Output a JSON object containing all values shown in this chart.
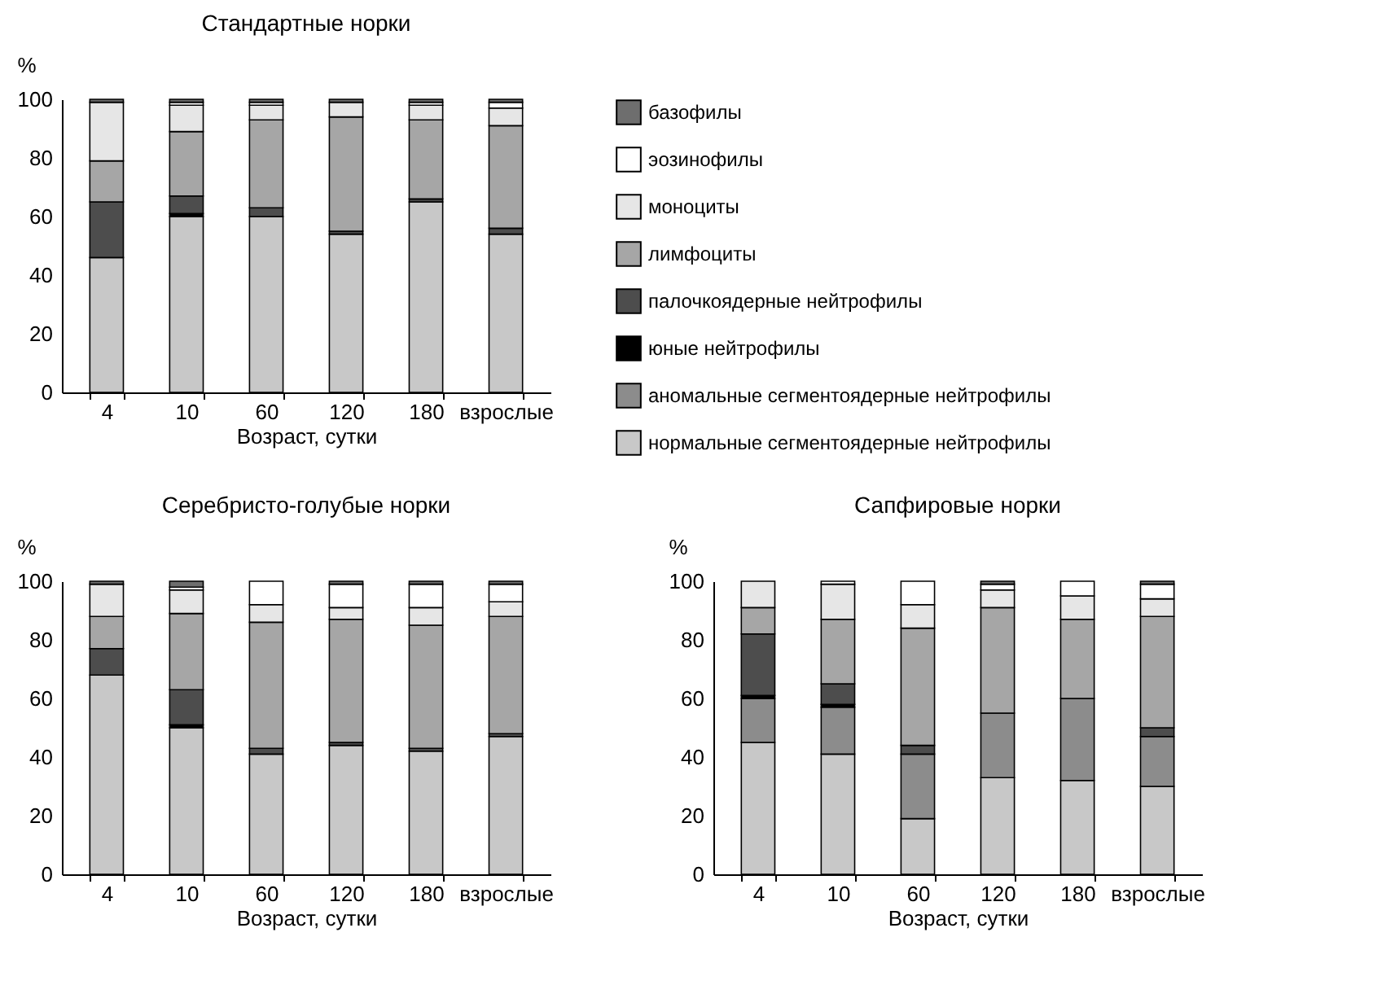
{
  "chart_data": [
    {
      "type": "bar",
      "title": "Стандартные норки",
      "xlabel": "Возраст, сутки",
      "ylabel": "%",
      "categories": [
        "4",
        "10",
        "60",
        "120",
        "180",
        "взрослые"
      ],
      "stacked": true,
      "ylim": [
        0,
        100
      ],
      "yticks": [
        0,
        20,
        40,
        60,
        80,
        100
      ],
      "grid": false,
      "legend": "right",
      "series": [
        {
          "name": "нормальные сегментоядерные нейтрофилы",
          "color": "#c8c8c8",
          "values": [
            46,
            60,
            60,
            54,
            65,
            54
          ]
        },
        {
          "name": "аномальные сегментоядерные нейтрофилы",
          "color": "#8c8c8c",
          "values": [
            null,
            null,
            null,
            null,
            null,
            null
          ]
        },
        {
          "name": "юные нейтрофилы",
          "color": "#000000",
          "values": [
            null,
            1,
            null,
            null,
            null,
            null
          ]
        },
        {
          "name": "палочкоядерные нейтрофилы",
          "color": "#4d4d4d",
          "values": [
            19,
            6,
            3,
            1,
            1,
            2
          ]
        },
        {
          "name": "лимфоциты",
          "color": "#a6a6a6",
          "values": [
            14,
            22,
            30,
            39,
            27,
            35
          ]
        },
        {
          "name": "моноциты",
          "color": "#e6e6e6",
          "values": [
            20,
            9,
            5,
            5,
            5,
            6
          ]
        },
        {
          "name": "эозинофилы",
          "color": "#ffffff",
          "values": [
            null,
            1,
            1,
            null,
            1,
            2
          ]
        },
        {
          "name": "базофилы",
          "color": "#6e6e6e",
          "values": [
            1,
            1,
            1,
            1,
            1,
            1
          ]
        }
      ]
    },
    {
      "type": "bar",
      "title": "Серебристо-голубые норки",
      "xlabel": "Возраст, сутки",
      "ylabel": "%",
      "categories": [
        "4",
        "10",
        "60",
        "120",
        "180",
        "взрослые"
      ],
      "stacked": true,
      "ylim": [
        0,
        100
      ],
      "yticks": [
        0,
        20,
        40,
        60,
        80,
        100
      ],
      "grid": false,
      "series": [
        {
          "color": "#c8c8c8",
          "values": [
            68,
            50,
            41,
            44,
            42,
            47
          ]
        },
        {
          "color": "#8c8c8c",
          "values": [
            null,
            null,
            null,
            null,
            null,
            null
          ]
        },
        {
          "color": "#000000",
          "values": [
            null,
            1,
            null,
            null,
            null,
            null
          ]
        },
        {
          "color": "#4d4d4d",
          "values": [
            9,
            12,
            2,
            1,
            1,
            1
          ]
        },
        {
          "color": "#a6a6a6",
          "values": [
            11,
            26,
            43,
            42,
            42,
            40
          ]
        },
        {
          "color": "#e6e6e6",
          "values": [
            11,
            8,
            6,
            4,
            6,
            5
          ]
        },
        {
          "color": "#ffffff",
          "values": [
            null,
            1,
            8,
            8,
            8,
            6
          ]
        },
        {
          "color": "#6e6e6e",
          "values": [
            1,
            2,
            null,
            1,
            1,
            1
          ]
        }
      ]
    },
    {
      "type": "bar",
      "title": "Сапфировые норки",
      "xlabel": "Возраст, сутки",
      "ylabel": "%",
      "categories": [
        "4",
        "10",
        "60",
        "120",
        "180",
        "взрослые"
      ],
      "stacked": true,
      "ylim": [
        0,
        100
      ],
      "yticks": [
        0,
        20,
        40,
        60,
        80,
        100
      ],
      "grid": false,
      "series": [
        {
          "color": "#c8c8c8",
          "values": [
            45,
            41,
            19,
            33,
            32,
            30
          ]
        },
        {
          "color": "#8c8c8c",
          "values": [
            15,
            16,
            22,
            22,
            28,
            17
          ]
        },
        {
          "color": "#000000",
          "values": [
            1,
            1,
            null,
            null,
            null,
            null
          ]
        },
        {
          "color": "#4d4d4d",
          "values": [
            21,
            7,
            3,
            null,
            null,
            3
          ]
        },
        {
          "color": "#a6a6a6",
          "values": [
            9,
            22,
            40,
            36,
            27,
            38
          ]
        },
        {
          "color": "#e6e6e6",
          "values": [
            9,
            12,
            8,
            6,
            8,
            6
          ]
        },
        {
          "color": "#ffffff",
          "values": [
            null,
            1,
            8,
            2,
            5,
            5
          ]
        },
        {
          "color": "#6e6e6e",
          "values": [
            null,
            null,
            null,
            1,
            null,
            1
          ]
        }
      ]
    }
  ]
}
